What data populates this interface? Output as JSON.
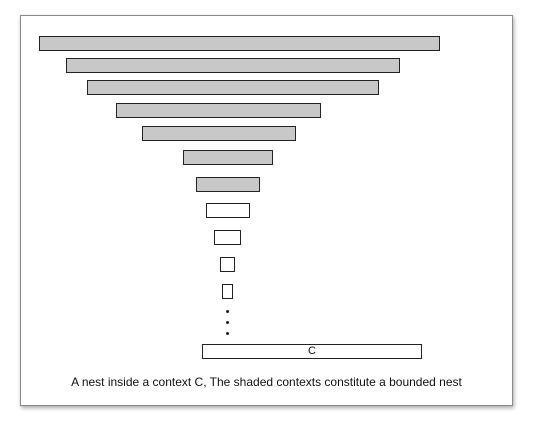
{
  "diagram": {
    "context_label": "C",
    "caption": "A nest inside a context C, The shaded contexts constitute a bounded nest",
    "nest": [
      {
        "shaded": true
      },
      {
        "shaded": true
      },
      {
        "shaded": true
      },
      {
        "shaded": true
      },
      {
        "shaded": true
      },
      {
        "shaded": true
      },
      {
        "shaded": true
      },
      {
        "shaded": false
      },
      {
        "shaded": false
      },
      {
        "shaded": false
      },
      {
        "shaded": false
      }
    ],
    "colors": {
      "shaded_fill": "#c8c8c8",
      "plain_fill": "#ffffff",
      "outline": "#222222"
    }
  }
}
